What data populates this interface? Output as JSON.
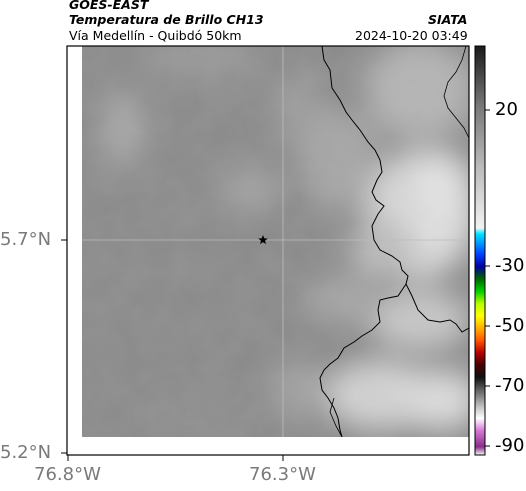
{
  "header": {
    "satellite": "GOES-EAST",
    "product": "Temperatura de Brillo CH13",
    "region": "Vía Medellín - Quibdó 50km",
    "agency": "SIATA",
    "timestamp": "2024-10-20 03:49"
  },
  "axes": {
    "lat_ticks": [
      "5.7°N",
      "5.2°N"
    ],
    "lon_ticks": [
      "76.8°W",
      "76.3°W"
    ]
  },
  "colorbar": {
    "labels": [
      "20",
      "-30",
      "-50",
      "-70",
      "-90"
    ]
  },
  "colors": {
    "cloud_free": "#8a8a8a",
    "cloud_bright": "#dedede",
    "boundary": "#000000",
    "gridline": "#bdbdbd"
  },
  "marker": {
    "icon": "star-marker"
  }
}
